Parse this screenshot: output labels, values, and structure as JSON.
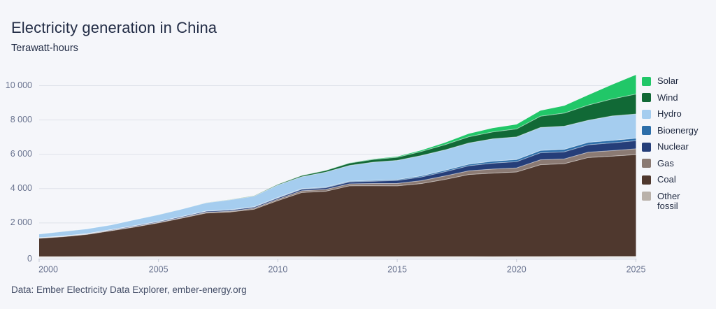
{
  "page": {
    "title": "Electricity generation in China",
    "subtitle": "Terawatt-hours",
    "footer": "Data: Ember Electricity Data Explorer, ember-energy.org",
    "background": "#f5f6fa"
  },
  "colors": {
    "background": "#f5f6fa",
    "gridline": "#dfe2ea",
    "axis_line": "#c8ccd8",
    "axis_text": "#6a7490",
    "title_text": "#242e47",
    "footer_text": "#454f68",
    "legend_text": "#1f2940",
    "layer_separator": "rgba(255,255,255,0.5)"
  },
  "chart_data": {
    "type": "area",
    "stacked": true,
    "title": "Electricity generation in China",
    "ylabel": "Terawatt-hours",
    "xlabel": "",
    "grid": "horizontal",
    "legend_position": "right",
    "ylim": [
      0,
      10600
    ],
    "xlim": [
      2000,
      2025
    ],
    "yticks": {
      "values": [
        0,
        2000,
        4000,
        6000,
        8000,
        10000
      ],
      "labels": [
        "0",
        "2 000",
        "4 000",
        "6 000",
        "8 000",
        "10 000"
      ]
    },
    "xticks": [
      2000,
      2005,
      2010,
      2015,
      2020,
      2025
    ],
    "x": [
      2000,
      2001,
      2002,
      2003,
      2004,
      2005,
      2006,
      2007,
      2008,
      2009,
      2010,
      2011,
      2012,
      2013,
      2014,
      2015,
      2016,
      2017,
      2018,
      2019,
      2020,
      2021,
      2022,
      2023,
      2024,
      2025
    ],
    "series": [
      {
        "name": "Solar",
        "color": "#21c768",
        "values": [
          0,
          0,
          0,
          0,
          0,
          0,
          0,
          0,
          0,
          0,
          1,
          3,
          6,
          15,
          29,
          39,
          67,
          118,
          177,
          224,
          261,
          327,
          428,
          584,
          834,
          1120
        ]
      },
      {
        "name": "Wind",
        "color": "#116936",
        "values": [
          1,
          1,
          1,
          1,
          1,
          2,
          4,
          9,
          15,
          27,
          45,
          70,
          96,
          138,
          156,
          186,
          241,
          305,
          366,
          406,
          467,
          656,
          763,
          886,
          992,
          1160
        ]
      },
      {
        "name": "Hydro",
        "color": "#a5cdef",
        "values": [
          222,
          277,
          288,
          284,
          354,
          397,
          436,
          485,
          585,
          616,
          722,
          699,
          872,
          920,
          1064,
          1113,
          1181,
          1190,
          1232,
          1302,
          1322,
          1340,
          1352,
          1285,
          1426,
          1410
        ]
      },
      {
        "name": "Bioenergy",
        "color": "#2d6ea9",
        "values": [
          2,
          2,
          2,
          2,
          3,
          5,
          8,
          10,
          15,
          20,
          25,
          32,
          35,
          38,
          44,
          53,
          65,
          79,
          93,
          111,
          120,
          135,
          140,
          140,
          142,
          145
        ]
      },
      {
        "name": "Nuclear",
        "color": "#253e79",
        "values": [
          17,
          18,
          25,
          43,
          50,
          53,
          55,
          62,
          68,
          70,
          74,
          86,
          97,
          112,
          133,
          171,
          213,
          248,
          295,
          349,
          366,
          408,
          418,
          435,
          451,
          475
        ]
      },
      {
        "name": "Gas",
        "color": "#8b7a73",
        "values": [
          12,
          14,
          16,
          19,
          24,
          26,
          34,
          42,
          44,
          58,
          78,
          100,
          110,
          116,
          133,
          145,
          170,
          203,
          215,
          233,
          237,
          287,
          276,
          306,
          322,
          335
        ]
      },
      {
        "name": "Coal",
        "color": "#4f382e",
        "values": [
          1060,
          1150,
          1280,
          1490,
          1710,
          1950,
          2230,
          2520,
          2580,
          2740,
          3250,
          3720,
          3790,
          4110,
          4115,
          4109,
          4241,
          4485,
          4772,
          4854,
          4917,
          5339,
          5398,
          5754,
          5830,
          5920
        ]
      },
      {
        "name": "Other fossil",
        "color": "#b9b1aa",
        "values": [
          47,
          48,
          50,
          52,
          53,
          55,
          56,
          58,
          57,
          56,
          55,
          54,
          53,
          52,
          51,
          50,
          50,
          49,
          49,
          48,
          50,
          52,
          55,
          58,
          60,
          62
        ]
      }
    ]
  }
}
